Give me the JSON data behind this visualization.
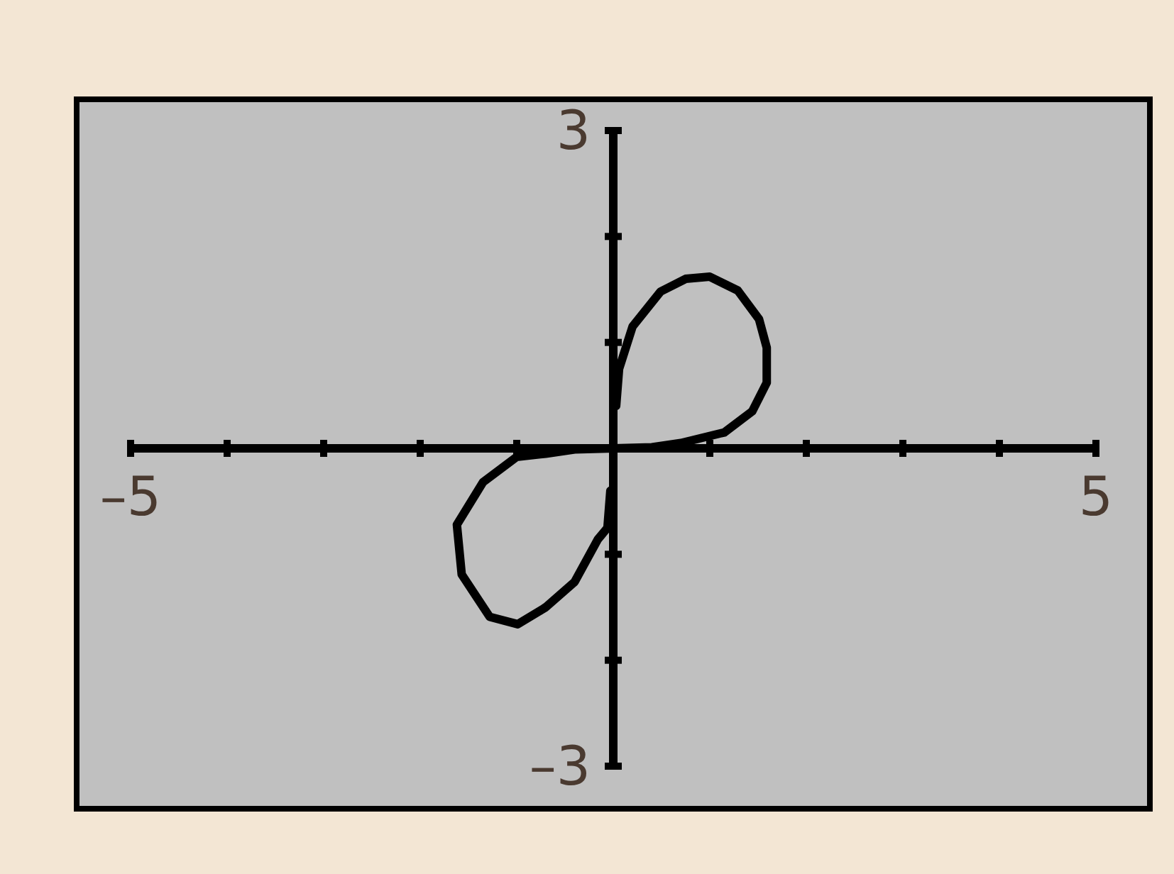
{
  "chart_data": {
    "type": "line",
    "xlim": [
      -5,
      5
    ],
    "ylim": [
      -3,
      3
    ],
    "xticks": [
      {
        "value": -5,
        "label": "–5"
      },
      {
        "value": -4,
        "label": null
      },
      {
        "value": -3,
        "label": null
      },
      {
        "value": -2,
        "label": null
      },
      {
        "value": -1,
        "label": null
      },
      {
        "value": 0,
        "label": null
      },
      {
        "value": 1,
        "label": null
      },
      {
        "value": 2,
        "label": null
      },
      {
        "value": 3,
        "label": null
      },
      {
        "value": 4,
        "label": null
      },
      {
        "value": 5,
        "label": "5"
      }
    ],
    "yticks": [
      {
        "value": -3,
        "label": "–3"
      },
      {
        "value": -2,
        "label": null
      },
      {
        "value": -1,
        "label": null
      },
      {
        "value": 0,
        "label": null
      },
      {
        "value": 1,
        "label": null
      },
      {
        "value": 2,
        "label": null
      },
      {
        "value": 3,
        "label": "3"
      }
    ],
    "grid": false,
    "marker": "none",
    "line_style": "solid",
    "series": [
      {
        "color": "#000000",
        "x": [
          0.03,
          0.06,
          0.2,
          0.49,
          0.75,
          1.0,
          1.29,
          1.51,
          1.59,
          1.59,
          1.44,
          1.15,
          0.7,
          0.4,
          -0.4,
          -0.7,
          -1.0,
          -1.35,
          -1.62,
          -1.57,
          -1.28,
          -0.99,
          -0.7,
          -0.4,
          -0.16,
          -0.06,
          -0.03
        ],
        "values": [
          0.4,
          0.75,
          1.15,
          1.48,
          1.6,
          1.62,
          1.49,
          1.22,
          0.95,
          0.62,
          0.35,
          0.15,
          0.05,
          0.01,
          -0.01,
          -0.05,
          -0.08,
          -0.32,
          -0.72,
          -1.19,
          -1.59,
          -1.66,
          -1.5,
          -1.26,
          -0.86,
          -0.75,
          -0.4
        ]
      }
    ]
  }
}
